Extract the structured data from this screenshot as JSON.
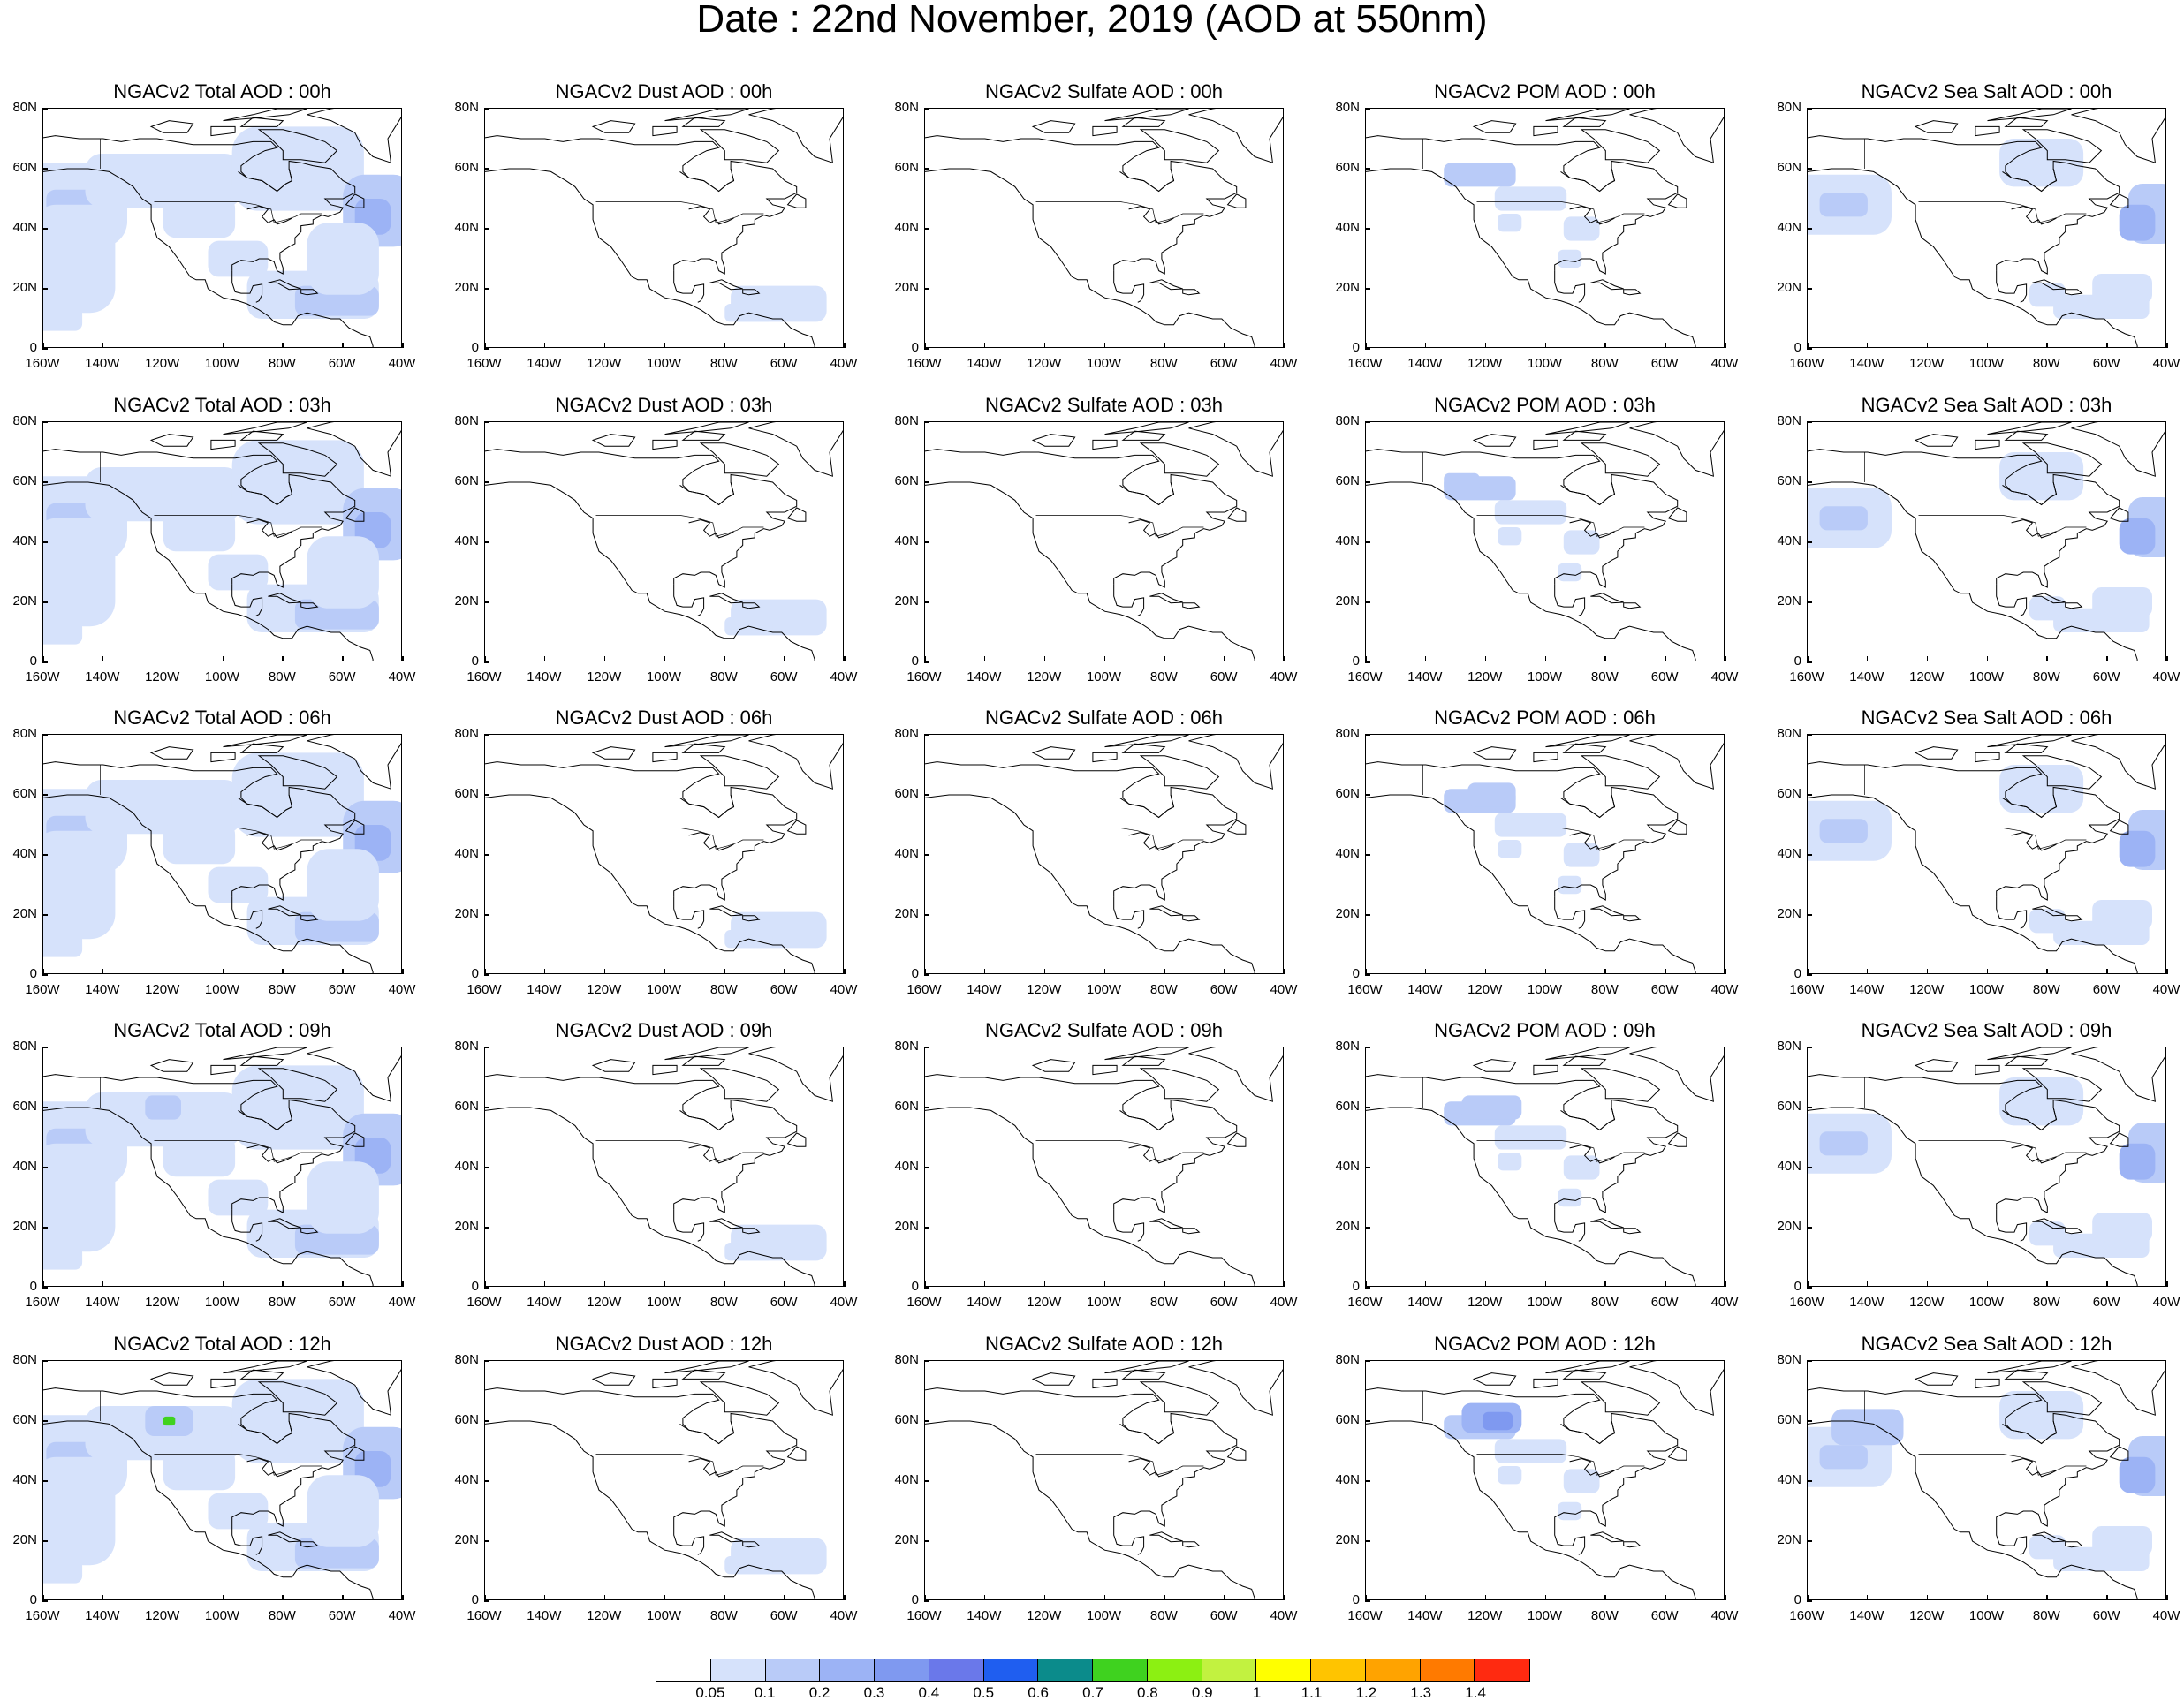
{
  "title": "Date : 22nd November, 2019 (AOD at 550nm)",
  "panel_titles": [
    [
      "NGACv2 Total AOD : 00h",
      "NGACv2 Dust AOD : 00h",
      "NGACv2 Sulfate AOD : 00h",
      "NGACv2 POM AOD : 00h",
      "NGACv2 Sea Salt AOD : 00h"
    ],
    [
      "NGACv2 Total AOD : 03h",
      "NGACv2 Dust AOD : 03h",
      "NGACv2 Sulfate AOD : 03h",
      "NGACv2 POM AOD : 03h",
      "NGACv2 Sea Salt AOD : 03h"
    ],
    [
      "NGACv2 Total AOD : 06h",
      "NGACv2 Dust AOD : 06h",
      "NGACv2 Sulfate AOD : 06h",
      "NGACv2 POM AOD : 06h",
      "NGACv2 Sea Salt AOD : 06h"
    ],
    [
      "NGACv2 Total AOD : 09h",
      "NGACv2 Dust AOD : 09h",
      "NGACv2 Sulfate AOD : 09h",
      "NGACv2 POM AOD : 09h",
      "NGACv2 Sea Salt  AOD : 09h"
    ],
    [
      "NGACv2 Total AOD  : 12h",
      "NGACv2 Dust AOD : 12h",
      "NGACv2 Sulfate AOD : 12h",
      "NGACv2 POM  AOD : 12h",
      "NGACv2 Sea Salt  AOD : 12h"
    ]
  ],
  "lat_ticks": [
    "80N",
    "60N",
    "40N",
    "20N",
    "0"
  ],
  "lon_ticks": [
    "160W",
    "140W",
    "120W",
    "100W",
    "80W",
    "60W",
    "40W"
  ],
  "colorbar": {
    "colors": [
      "#ffffff",
      "#d6e2fb",
      "#b9cbf8",
      "#9cb3f5",
      "#7f99f0",
      "#6a78ea",
      "#1f5ef0",
      "#0b8b8b",
      "#3fd21f",
      "#8cf012",
      "#c2f240",
      "#ffff00",
      "#ffc400",
      "#ffa300",
      "#ff7a00",
      "#ff2a10"
    ],
    "labels": [
      "0.05",
      "0.1",
      "0.2",
      "0.3",
      "0.4",
      "0.5",
      "0.6",
      "0.7",
      "0.8",
      "0.9",
      "1",
      "1.1",
      "1.2",
      "1.3",
      "1.4"
    ]
  },
  "map_data": {
    "extent": {
      "lon": [
        -160,
        -40
      ],
      "lat": [
        0,
        80
      ]
    },
    "aod_colors": {
      "light": "#d6e2fb",
      "mid": "#b9cbf8",
      "strong": "#9cb3f5",
      "deep": "#7f99f0",
      "peak": "#3fd21f"
    }
  }
}
